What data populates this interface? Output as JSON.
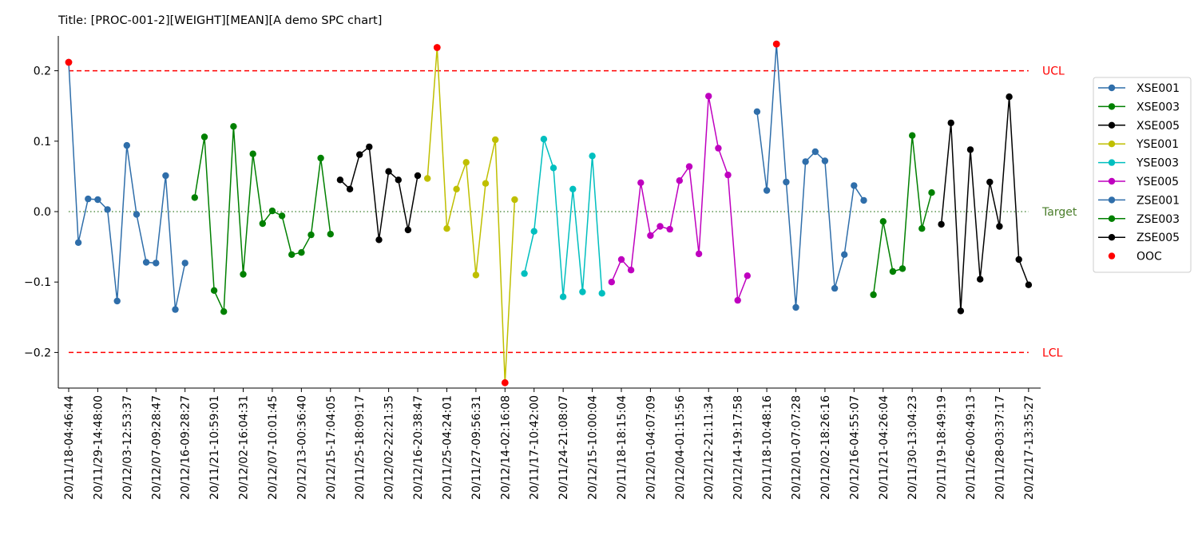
{
  "chart_data": {
    "type": "line",
    "title": "Title: [PROC-001-2][WEIGHT][MEAN][A demo SPC chart]",
    "xlabel": "",
    "ylabel": "",
    "ylim": [
      -0.25,
      0.25
    ],
    "y_ticks": [
      -0.2,
      -0.1,
      0.0,
      0.1,
      0.2
    ],
    "y_tick_labels": [
      "−0.2",
      "−0.1",
      "0.0",
      "0.1",
      "0.2"
    ],
    "x_tick_labels": [
      "20/11/18-04:46:44",
      "20/11/29-14:48:00",
      "20/12/03-12:53:37",
      "20/12/07-09:28:47",
      "20/12/16-09:28:27",
      "20/11/21-10:59:01",
      "20/12/02-16:04:31",
      "20/12/07-10:01:45",
      "20/12/13-00:36:40",
      "20/12/15-17:04:05",
      "20/11/25-18:09:17",
      "20/12/02-22:21:35",
      "20/12/16-20:38:47",
      "20/11/25-04:24:01",
      "20/11/27-09:56:31",
      "20/12/14-02:16:08",
      "20/11/17-10:42:00",
      "20/11/24-21:08:07",
      "20/12/15-10:00:04",
      "20/11/18-18:15:04",
      "20/12/01-04:07:09",
      "20/12/04-01:15:56",
      "20/12/12-21:11:34",
      "20/12/14-19:17:58",
      "20/11/18-10:48:16",
      "20/12/01-07:07:28",
      "20/12/02-18:26:16",
      "20/12/16-04:55:07",
      "20/11/21-04:26:04",
      "20/11/30-13:04:23",
      "20/11/19-18:49:19",
      "20/11/26-00:49:13",
      "20/11/28-03:37:17",
      "20/12/17-13:35:27"
    ],
    "ucl": 0.2,
    "lcl": -0.2,
    "target": 0.0,
    "ucl_label": "UCL",
    "lcl_label": "LCL",
    "target_label": "Target",
    "legend_position": "right",
    "grid": false,
    "series": [
      {
        "name": "XSE001",
        "color": "#2f6eaa",
        "values": [
          0.212,
          -0.044,
          0.018,
          0.017,
          0.003,
          -0.127,
          0.094,
          -0.004,
          -0.072,
          -0.073,
          0.051,
          -0.139,
          -0.073
        ]
      },
      {
        "name": "XSE003",
        "color": "#008000",
        "values": [
          0.02,
          0.106,
          -0.112,
          -0.142,
          0.121,
          -0.089,
          0.082,
          -0.017,
          0.001,
          -0.006,
          -0.061,
          -0.058,
          -0.033,
          0.076,
          -0.032
        ]
      },
      {
        "name": "XSE005",
        "color": "#000000",
        "values": [
          0.045,
          0.032,
          0.081,
          0.092,
          -0.04,
          0.057,
          0.045,
          -0.026,
          0.051
        ]
      },
      {
        "name": "YSE001",
        "color": "#bfbf00",
        "values": [
          0.047,
          0.233,
          -0.024,
          0.032,
          0.07,
          -0.09,
          0.04,
          0.102,
          -0.243,
          0.017
        ]
      },
      {
        "name": "YSE003",
        "color": "#00bfbf",
        "values": [
          -0.088,
          -0.028,
          0.103,
          0.062,
          -0.121,
          0.032,
          -0.114,
          0.079,
          -0.116
        ]
      },
      {
        "name": "YSE005",
        "color": "#bf00bf",
        "values": [
          -0.1,
          -0.068,
          -0.083,
          0.041,
          -0.034,
          -0.021,
          -0.025,
          0.044,
          0.064,
          -0.06,
          0.164,
          0.09,
          0.052,
          -0.126,
          -0.091
        ]
      },
      {
        "name": "ZSE001",
        "color": "#2f6eaa",
        "values": [
          0.142,
          0.03,
          0.238,
          0.042,
          -0.136,
          0.071,
          0.085,
          0.072,
          -0.109,
          -0.061,
          0.037,
          0.016
        ]
      },
      {
        "name": "ZSE003",
        "color": "#008000",
        "values": [
          -0.118,
          -0.014,
          -0.085,
          -0.081,
          0.108,
          -0.024,
          0.027
        ]
      },
      {
        "name": "ZSE005",
        "color": "#000000",
        "values": [
          -0.018,
          0.126,
          -0.141,
          0.088,
          -0.096,
          0.042,
          -0.021,
          0.163,
          -0.068,
          -0.104
        ]
      }
    ],
    "ooc": {
      "name": "OOC",
      "color": "#ff0000"
    }
  }
}
